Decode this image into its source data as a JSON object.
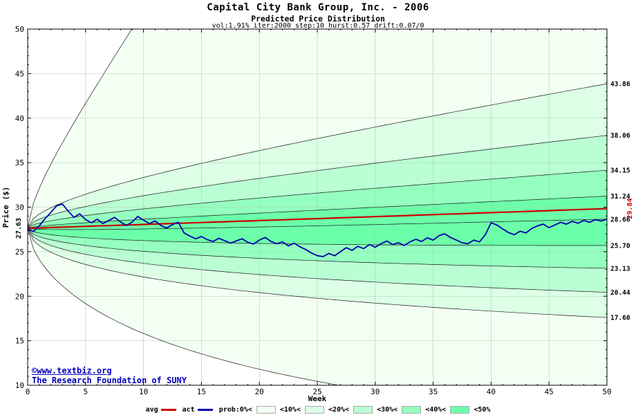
{
  "chart_data": {
    "type": "line",
    "subtype": "fan-prediction-chart",
    "title": "Capital City Bank Group, Inc. - 2006",
    "subtitle": "Predicted Price Distribution",
    "params": "vol:1.91% iter:2000 step:10 hurst:0.57 drift:0.07/0",
    "xlabel": "Week",
    "ylabel": "Price ($)",
    "xlim": [
      0,
      50
    ],
    "ylim": [
      10,
      50
    ],
    "xticks": [
      0,
      5,
      10,
      15,
      20,
      25,
      30,
      35,
      40,
      45,
      50
    ],
    "yticks": [
      10,
      15,
      20,
      25,
      30,
      35,
      40,
      45,
      50
    ],
    "start_price": 27.63,
    "start_label": "27.63",
    "series": [
      {
        "name": "avg",
        "color": "#cc0000",
        "start": 27.63,
        "end": 29.84,
        "end_label": "29.84"
      },
      {
        "name": "act",
        "color": "#0000aa",
        "points": [
          [
            0,
            27.63
          ],
          [
            0.5,
            27.25
          ],
          [
            1,
            27.9
          ],
          [
            1.5,
            28.7
          ],
          [
            2,
            29.4
          ],
          [
            2.5,
            30.15
          ],
          [
            3,
            30.35
          ],
          [
            3.5,
            29.55
          ],
          [
            4,
            28.85
          ],
          [
            4.5,
            29.25
          ],
          [
            5,
            28.6
          ],
          [
            5.5,
            28.25
          ],
          [
            6,
            28.65
          ],
          [
            6.5,
            28.15
          ],
          [
            7,
            28.5
          ],
          [
            7.5,
            28.85
          ],
          [
            8,
            28.35
          ],
          [
            8.5,
            27.95
          ],
          [
            9,
            28.3
          ],
          [
            9.5,
            28.95
          ],
          [
            10,
            28.55
          ],
          [
            10.5,
            28.15
          ],
          [
            11,
            28.45
          ],
          [
            11.5,
            27.95
          ],
          [
            12,
            27.65
          ],
          [
            12.5,
            28.05
          ],
          [
            13,
            28.3
          ],
          [
            13.5,
            27.1
          ],
          [
            14,
            26.75
          ],
          [
            14.5,
            26.45
          ],
          [
            15,
            26.7
          ],
          [
            15.5,
            26.35
          ],
          [
            16,
            26.15
          ],
          [
            16.5,
            26.5
          ],
          [
            17,
            26.25
          ],
          [
            17.5,
            25.95
          ],
          [
            18,
            26.2
          ],
          [
            18.5,
            26.45
          ],
          [
            19,
            26.05
          ],
          [
            19.5,
            25.85
          ],
          [
            20,
            26.3
          ],
          [
            20.5,
            26.6
          ],
          [
            21,
            26.15
          ],
          [
            21.5,
            25.9
          ],
          [
            22,
            26.1
          ],
          [
            22.5,
            25.65
          ],
          [
            23,
            25.95
          ],
          [
            23.5,
            25.55
          ],
          [
            24,
            25.25
          ],
          [
            24.5,
            24.85
          ],
          [
            25,
            24.55
          ],
          [
            25.5,
            24.45
          ],
          [
            26,
            24.8
          ],
          [
            26.5,
            24.55
          ],
          [
            27,
            25.0
          ],
          [
            27.5,
            25.45
          ],
          [
            28,
            25.15
          ],
          [
            28.5,
            25.6
          ],
          [
            29,
            25.35
          ],
          [
            29.5,
            25.8
          ],
          [
            30,
            25.5
          ],
          [
            30.5,
            25.9
          ],
          [
            31,
            26.2
          ],
          [
            31.5,
            25.8
          ],
          [
            32,
            26.0
          ],
          [
            32.5,
            25.7
          ],
          [
            33,
            26.1
          ],
          [
            33.5,
            26.4
          ],
          [
            34,
            26.15
          ],
          [
            34.5,
            26.55
          ],
          [
            35,
            26.3
          ],
          [
            35.5,
            26.8
          ],
          [
            36,
            27.0
          ],
          [
            36.5,
            26.6
          ],
          [
            37,
            26.3
          ],
          [
            37.5,
            26.0
          ],
          [
            38,
            25.9
          ],
          [
            38.5,
            26.3
          ],
          [
            39,
            26.1
          ],
          [
            39.5,
            26.9
          ],
          [
            40,
            28.25
          ],
          [
            40.5,
            28.0
          ],
          [
            41,
            27.55
          ],
          [
            41.5,
            27.15
          ],
          [
            42,
            26.9
          ],
          [
            42.5,
            27.3
          ],
          [
            43,
            27.1
          ],
          [
            43.5,
            27.6
          ],
          [
            44,
            27.9
          ],
          [
            44.5,
            28.1
          ],
          [
            45,
            27.7
          ],
          [
            45.5,
            28.0
          ],
          [
            46,
            28.3
          ],
          [
            46.5,
            28.1
          ],
          [
            47,
            28.4
          ],
          [
            47.5,
            28.2
          ],
          [
            48,
            28.5
          ],
          [
            48.5,
            28.3
          ],
          [
            49,
            28.6
          ],
          [
            49.5,
            28.45
          ],
          [
            50,
            28.66
          ]
        ]
      }
    ],
    "bands": {
      "edge_values": [
        43.86,
        38.06,
        34.15,
        31.24,
        28.66,
        25.7,
        23.13,
        20.44,
        17.6
      ],
      "edge_labels": [
        "43.86",
        "38.06",
        "34.15",
        "31.24",
        "28.66",
        "25.70",
        "23.13",
        "20.44",
        "17.60"
      ],
      "colors": [
        "#f3fff3",
        "#dcffe6",
        "#baffd4",
        "#95ffc0",
        "#6cffaa"
      ]
    },
    "legend": [
      {
        "kind": "line",
        "label": "avg",
        "color": "#cc0000"
      },
      {
        "kind": "line",
        "label": "act",
        "color": "#0000aa"
      },
      {
        "kind": "text",
        "label": "prob:0%<"
      },
      {
        "kind": "swatch",
        "color": "#f3fff3"
      },
      {
        "kind": "text",
        "label": "<10%<"
      },
      {
        "kind": "swatch",
        "color": "#dcffe6"
      },
      {
        "kind": "text",
        "label": "<20%<"
      },
      {
        "kind": "swatch",
        "color": "#baffd4"
      },
      {
        "kind": "text",
        "label": "<30%<"
      },
      {
        "kind": "swatch",
        "color": "#95ffc0"
      },
      {
        "kind": "text",
        "label": "<40%<"
      },
      {
        "kind": "swatch",
        "color": "#6cffaa"
      },
      {
        "kind": "text",
        "label": "<50%"
      }
    ]
  },
  "watermark": {
    "line1": "©www.textbiz.org",
    "line2": "The Research Foundation of SUNY"
  }
}
